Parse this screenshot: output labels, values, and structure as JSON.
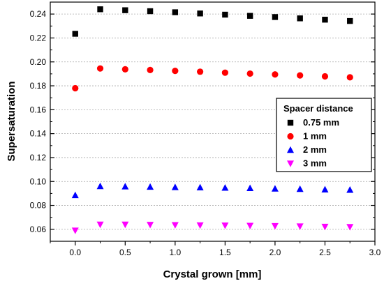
{
  "chart_data": {
    "type": "scatter",
    "xlabel": "Crystal grown [mm]",
    "ylabel": "Supersaturation",
    "xlim": [
      -0.25,
      3.0
    ],
    "ylim": [
      0.05,
      0.25
    ],
    "xticks": [
      "0.0",
      "0.5",
      "1.0",
      "1.5",
      "2.0",
      "2.5",
      "3.0"
    ],
    "yticks": [
      "0.06",
      "0.08",
      "0.10",
      "0.12",
      "0.14",
      "0.16",
      "0.18",
      "0.20",
      "0.22",
      "0.24"
    ],
    "grid": "horizontal dashed",
    "legend": {
      "title": "Spacer distance",
      "placement": "right"
    },
    "x": [
      0.0,
      0.25,
      0.5,
      0.75,
      1.0,
      1.25,
      1.5,
      1.75,
      2.0,
      2.25,
      2.5,
      2.75
    ],
    "series": [
      {
        "name": "0.75 mm",
        "marker": "square",
        "color": "#000000",
        "values": [
          0.2235,
          0.244,
          0.2432,
          0.2424,
          0.2415,
          0.2405,
          0.2395,
          0.2385,
          0.2375,
          0.2364,
          0.2353,
          0.2342
        ]
      },
      {
        "name": "1 mm",
        "marker": "circle",
        "color": "#ff0000",
        "values": [
          0.178,
          0.1945,
          0.1938,
          0.1932,
          0.1925,
          0.1918,
          0.191,
          0.1902,
          0.1895,
          0.1887,
          0.1879,
          0.1871
        ]
      },
      {
        "name": "2 mm",
        "marker": "triangle-up",
        "color": "#0000ff",
        "values": [
          0.0885,
          0.096,
          0.0958,
          0.0955,
          0.0952,
          0.095,
          0.0947,
          0.0944,
          0.094,
          0.0937,
          0.0933,
          0.093
        ]
      },
      {
        "name": "3 mm",
        "marker": "triangle-down",
        "color": "#ff00ff",
        "values": [
          0.059,
          0.064,
          0.064,
          0.0638,
          0.0636,
          0.0634,
          0.0632,
          0.063,
          0.0628,
          0.0625,
          0.0622,
          0.062
        ]
      }
    ]
  }
}
